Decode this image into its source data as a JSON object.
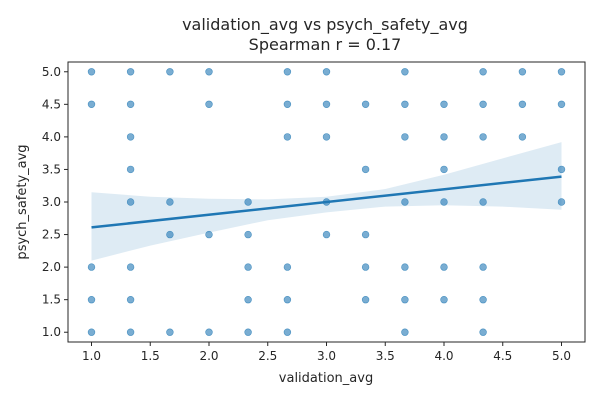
{
  "chart_data": {
    "type": "scatter",
    "title": "validation_avg vs psych_safety_avg",
    "subtitle": "Spearman r = 0.17",
    "xlabel": "validation_avg",
    "ylabel": "psych_safety_avg",
    "xlim": [
      0.8,
      5.2
    ],
    "ylim": [
      0.85,
      5.15
    ],
    "xticks": [
      "1.0",
      "1.5",
      "2.0",
      "2.5",
      "3.0",
      "3.5",
      "4.0",
      "4.5",
      "5.0"
    ],
    "yticks": [
      "1.0",
      "1.5",
      "2.0",
      "2.5",
      "3.0",
      "3.5",
      "4.0",
      "4.5",
      "5.0"
    ],
    "grid": false,
    "point_color": "#1f77b4",
    "points": [
      [
        1.0,
        5.0
      ],
      [
        1.0,
        4.5
      ],
      [
        1.0,
        2.0
      ],
      [
        1.0,
        1.5
      ],
      [
        1.0,
        1.0
      ],
      [
        1.333,
        5.0
      ],
      [
        1.333,
        4.5
      ],
      [
        1.333,
        4.0
      ],
      [
        1.333,
        3.5
      ],
      [
        1.333,
        3.0
      ],
      [
        1.333,
        2.0
      ],
      [
        1.333,
        1.5
      ],
      [
        1.333,
        1.0
      ],
      [
        1.667,
        5.0
      ],
      [
        1.667,
        3.0
      ],
      [
        1.667,
        2.5
      ],
      [
        1.667,
        1.0
      ],
      [
        2.0,
        5.0
      ],
      [
        2.0,
        4.5
      ],
      [
        2.0,
        2.5
      ],
      [
        2.0,
        1.0
      ],
      [
        2.333,
        3.0
      ],
      [
        2.333,
        2.5
      ],
      [
        2.333,
        2.0
      ],
      [
        2.333,
        1.5
      ],
      [
        2.333,
        1.0
      ],
      [
        2.667,
        5.0
      ],
      [
        2.667,
        4.5
      ],
      [
        2.667,
        4.0
      ],
      [
        2.667,
        2.0
      ],
      [
        2.667,
        1.5
      ],
      [
        2.667,
        1.0
      ],
      [
        3.0,
        5.0
      ],
      [
        3.0,
        4.5
      ],
      [
        3.0,
        4.0
      ],
      [
        3.0,
        3.0
      ],
      [
        3.0,
        2.5
      ],
      [
        3.333,
        4.5
      ],
      [
        3.333,
        3.5
      ],
      [
        3.333,
        2.5
      ],
      [
        3.333,
        2.0
      ],
      [
        3.333,
        1.5
      ],
      [
        3.667,
        5.0
      ],
      [
        3.667,
        4.5
      ],
      [
        3.667,
        4.0
      ],
      [
        3.667,
        3.0
      ],
      [
        3.667,
        2.0
      ],
      [
        3.667,
        1.5
      ],
      [
        3.667,
        1.0
      ],
      [
        4.0,
        4.5
      ],
      [
        4.0,
        4.0
      ],
      [
        4.0,
        3.5
      ],
      [
        4.0,
        3.0
      ],
      [
        4.0,
        2.0
      ],
      [
        4.0,
        1.5
      ],
      [
        4.333,
        5.0
      ],
      [
        4.333,
        4.5
      ],
      [
        4.333,
        4.0
      ],
      [
        4.333,
        3.0
      ],
      [
        4.333,
        2.0
      ],
      [
        4.333,
        1.5
      ],
      [
        4.333,
        1.0
      ],
      [
        4.667,
        5.0
      ],
      [
        4.667,
        4.5
      ],
      [
        4.667,
        4.0
      ],
      [
        5.0,
        5.0
      ],
      [
        5.0,
        4.5
      ],
      [
        5.0,
        3.5
      ],
      [
        5.0,
        3.0
      ]
    ],
    "regression_line": {
      "x": [
        1.0,
        5.0
      ],
      "y": [
        2.61,
        3.39
      ]
    },
    "confidence_band": {
      "x": [
        1.0,
        1.5,
        2.0,
        2.5,
        3.0,
        3.5,
        4.0,
        4.5,
        5.0
      ],
      "lower": [
        2.1,
        2.33,
        2.53,
        2.72,
        2.84,
        2.93,
        2.95,
        2.93,
        2.88
      ],
      "upper": [
        3.15,
        3.08,
        3.05,
        3.04,
        3.08,
        3.2,
        3.42,
        3.67,
        3.92
      ]
    }
  }
}
